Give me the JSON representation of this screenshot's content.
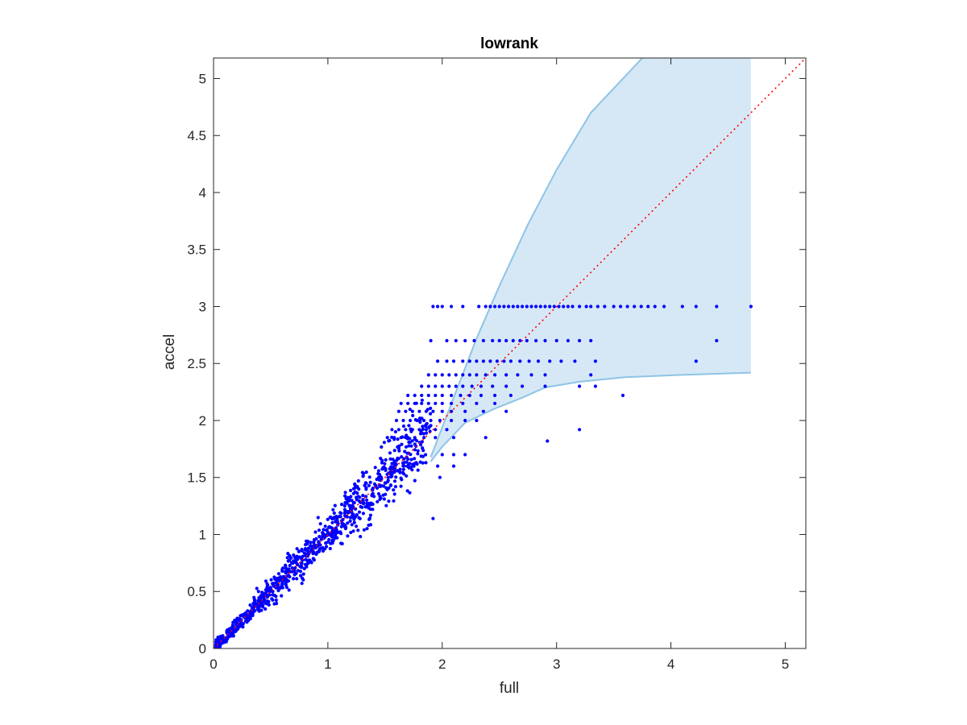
{
  "chart_data": {
    "type": "scatter",
    "title": "lowrank",
    "xlabel": "full",
    "ylabel": "accel",
    "xlim": [
      0,
      5.18
    ],
    "ylim": [
      0,
      5.18
    ],
    "xticks": [
      0,
      1,
      2,
      3,
      4,
      5
    ],
    "yticks": [
      0,
      0.5,
      1,
      1.5,
      2,
      2.5,
      3,
      3.5,
      4,
      4.5,
      5
    ],
    "xtick_labels": [
      "0",
      "1",
      "2",
      "3",
      "4",
      "5"
    ],
    "ytick_labels": [
      "0",
      "0.5",
      "1",
      "1.5",
      "2",
      "2.5",
      "3",
      "3.5",
      "4",
      "4.5",
      "5"
    ],
    "grid": false,
    "colors": {
      "points": "#0000ff",
      "band_fill": "#d6e8f5",
      "band_edge": "#8ec4e6",
      "identity_line": "#ff0000",
      "axes": "#262626"
    },
    "band": {
      "upper": [
        [
          1.9,
          1.68
        ],
        [
          2.1,
          2.2
        ],
        [
          2.3,
          2.72
        ],
        [
          2.5,
          3.18
        ],
        [
          2.75,
          3.72
        ],
        [
          3.0,
          4.2
        ],
        [
          3.3,
          4.7
        ],
        [
          3.75,
          5.18
        ],
        [
          4.7,
          5.18
        ]
      ],
      "lower": [
        [
          1.9,
          1.64
        ],
        [
          2.0,
          1.77
        ],
        [
          2.2,
          1.98
        ],
        [
          2.45,
          2.1
        ],
        [
          2.7,
          2.2
        ],
        [
          2.9,
          2.29
        ],
        [
          3.2,
          2.34
        ],
        [
          3.6,
          2.38
        ],
        [
          4.1,
          2.4
        ],
        [
          4.7,
          2.42
        ]
      ]
    },
    "identity_line": [
      [
        0,
        0
      ],
      [
        5.18,
        5.18
      ]
    ],
    "series": [
      {
        "points_linear_trend": {
          "x_range": [
            0.02,
            1.9
          ],
          "slope": 1.0,
          "count": 900
        },
        "clusters": [
          {
            "y": 3.0,
            "x": [
              1.92,
              1.96,
              2.0,
              2.08,
              2.18,
              2.32,
              2.38,
              2.42,
              2.46,
              2.5,
              2.54,
              2.58,
              2.62,
              2.66,
              2.7,
              2.74,
              2.78,
              2.82,
              2.86,
              2.9,
              2.94,
              2.98,
              3.02,
              3.06,
              3.1,
              3.14,
              3.2,
              3.26,
              3.3,
              3.36,
              3.42,
              3.5,
              3.56,
              3.62,
              3.68,
              3.74,
              3.8,
              3.86,
              3.94,
              4.1,
              4.22,
              4.4,
              4.7
            ]
          },
          {
            "y": 2.7,
            "x": [
              1.9,
              2.04,
              2.12,
              2.2,
              2.28,
              2.36,
              2.44,
              2.5,
              2.56,
              2.62,
              2.68,
              2.74,
              2.82,
              2.9,
              3.0,
              3.1,
              3.2,
              3.3,
              4.4
            ]
          },
          {
            "y": 2.52,
            "x": [
              1.96,
              2.04,
              2.1,
              2.18,
              2.24,
              2.3,
              2.36,
              2.42,
              2.48,
              2.54,
              2.6,
              2.68,
              2.76,
              2.84,
              2.94,
              3.04,
              3.16,
              3.34,
              4.22
            ]
          },
          {
            "y": 2.4,
            "x": [
              1.88,
              1.94,
              2.0,
              2.06,
              2.12,
              2.18,
              2.24,
              2.3,
              2.38,
              2.46,
              2.56,
              2.66,
              2.78,
              2.9,
              3.3
            ]
          },
          {
            "y": 2.3,
            "x": [
              1.82,
              1.88,
              1.94,
              2.0,
              2.06,
              2.12,
              2.18,
              2.26,
              2.34,
              2.44,
              2.56,
              2.7,
              2.9,
              3.2,
              3.34
            ]
          },
          {
            "y": 2.22,
            "x": [
              1.7,
              1.76,
              1.82,
              1.88,
              1.94,
              2.0,
              2.08,
              2.16,
              2.24,
              2.34,
              2.46,
              2.6,
              3.58
            ]
          },
          {
            "y": 2.15,
            "x": [
              1.64,
              1.7,
              1.76,
              1.82,
              1.88,
              1.94,
              2.0,
              2.08,
              2.18,
              2.3,
              2.46
            ]
          },
          {
            "y": 2.08,
            "x": [
              1.62,
              1.68,
              1.74,
              1.8,
              1.86,
              1.92,
              2.0,
              2.08,
              2.2,
              2.36,
              2.56
            ]
          },
          {
            "y": 2.0,
            "x": [
              1.6,
              1.66,
              1.72,
              1.78,
              1.84,
              1.9,
              1.98,
              2.08,
              2.2,
              2.3
            ]
          },
          {
            "y": 1.92,
            "x": [
              1.56,
              1.62,
              1.68,
              1.74,
              1.8,
              1.86,
              1.94,
              2.04,
              3.2
            ]
          },
          {
            "y": 1.85,
            "x": [
              1.52,
              1.58,
              1.64,
              1.7,
              1.76,
              1.84,
              1.94,
              2.1,
              2.38
            ]
          },
          {
            "y": 1.82,
            "x": [
              2.92
            ]
          },
          {
            "y": 1.7,
            "x": [
              2.0,
              2.1,
              2.2
            ]
          },
          {
            "y": 1.6,
            "x": [
              1.96,
              2.1
            ]
          },
          {
            "y": 1.5,
            "x": [
              1.98
            ]
          },
          {
            "y": 1.14,
            "x": [
              1.92
            ]
          }
        ]
      }
    ]
  }
}
